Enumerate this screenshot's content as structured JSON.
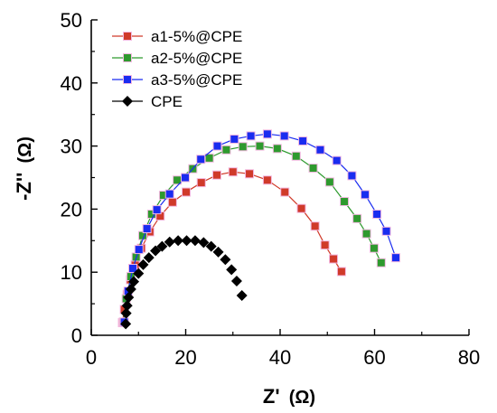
{
  "chart_data": {
    "type": "scatter",
    "xlabel": "Z'",
    "xunit": "(Ω)",
    "ylabel": "-Z''",
    "yunit": "(Ω)",
    "xlim": [
      0,
      80
    ],
    "ylim": [
      0,
      50
    ],
    "xticks": [
      0,
      20,
      40,
      60,
      80
    ],
    "yticks": [
      0,
      10,
      20,
      30,
      40,
      50
    ],
    "grid": false,
    "legend_position": "top-left",
    "series": [
      {
        "name": "a1-5%@CPE",
        "color": "#d03a2a",
        "marker": "square",
        "line": true,
        "x": [
          6.6,
          7.0,
          7.6,
          8.3,
          9.3,
          10.6,
          12.4,
          14.6,
          17.2,
          20.1,
          23.3,
          26.6,
          30.0,
          33.5,
          37.3,
          41.0,
          44.5,
          47.4,
          49.5,
          51.3,
          53.0
        ],
        "y": [
          2.0,
          4.1,
          6.5,
          8.8,
          11.2,
          13.8,
          16.4,
          18.9,
          21.1,
          22.7,
          24.2,
          25.4,
          25.9,
          25.6,
          24.6,
          22.7,
          20.1,
          17.3,
          14.3,
          12.1,
          10.1
        ]
      },
      {
        "name": "a2-5%@CPE",
        "color": "#2e9a2e",
        "marker": "square",
        "line": true,
        "x": [
          6.8,
          7.4,
          8.4,
          9.5,
          10.9,
          12.8,
          15.3,
          18.2,
          21.5,
          25.0,
          28.6,
          32.1,
          35.7,
          39.4,
          43.4,
          47.0,
          50.5,
          53.6,
          56.3,
          58.3,
          59.9,
          61.4
        ],
        "y": [
          2.1,
          5.8,
          9.3,
          12.4,
          15.8,
          19.2,
          22.2,
          24.6,
          26.4,
          28.1,
          29.4,
          29.9,
          30.0,
          29.6,
          28.4,
          26.5,
          24.3,
          21.2,
          18.5,
          16.1,
          13.8,
          11.5
        ]
      },
      {
        "name": "a3-5%@CPE",
        "color": "#1a2cf0",
        "marker": "square",
        "line": true,
        "x": [
          7.0,
          7.8,
          8.8,
          10.1,
          11.8,
          13.9,
          16.6,
          19.9,
          23.2,
          26.7,
          30.3,
          33.8,
          37.3,
          40.9,
          44.8,
          48.5,
          52.0,
          55.2,
          58.0,
          60.5,
          62.5,
          64.5
        ],
        "y": [
          2.1,
          7.0,
          10.6,
          13.6,
          16.9,
          19.9,
          22.4,
          25.0,
          27.9,
          30.0,
          31.1,
          31.6,
          31.9,
          31.6,
          30.8,
          29.4,
          27.7,
          25.3,
          22.3,
          19.2,
          16.5,
          12.3
        ]
      },
      {
        "name": "CPE",
        "color": "#000000",
        "marker": "diamond",
        "line": false,
        "x": [
          7.3,
          7.4,
          7.6,
          7.9,
          8.4,
          9.0,
          10.0,
          11.0,
          12.2,
          13.6,
          15.0,
          16.6,
          18.4,
          20.2,
          22.0,
          23.8,
          25.4,
          26.9,
          28.4,
          29.7,
          30.8,
          31.9
        ],
        "y": [
          1.8,
          3.5,
          4.7,
          6.0,
          7.3,
          8.5,
          9.8,
          11.2,
          12.3,
          13.4,
          14.1,
          14.8,
          15.0,
          15.0,
          15.0,
          14.7,
          14.1,
          13.2,
          12.0,
          10.4,
          8.6,
          6.3
        ]
      }
    ]
  }
}
